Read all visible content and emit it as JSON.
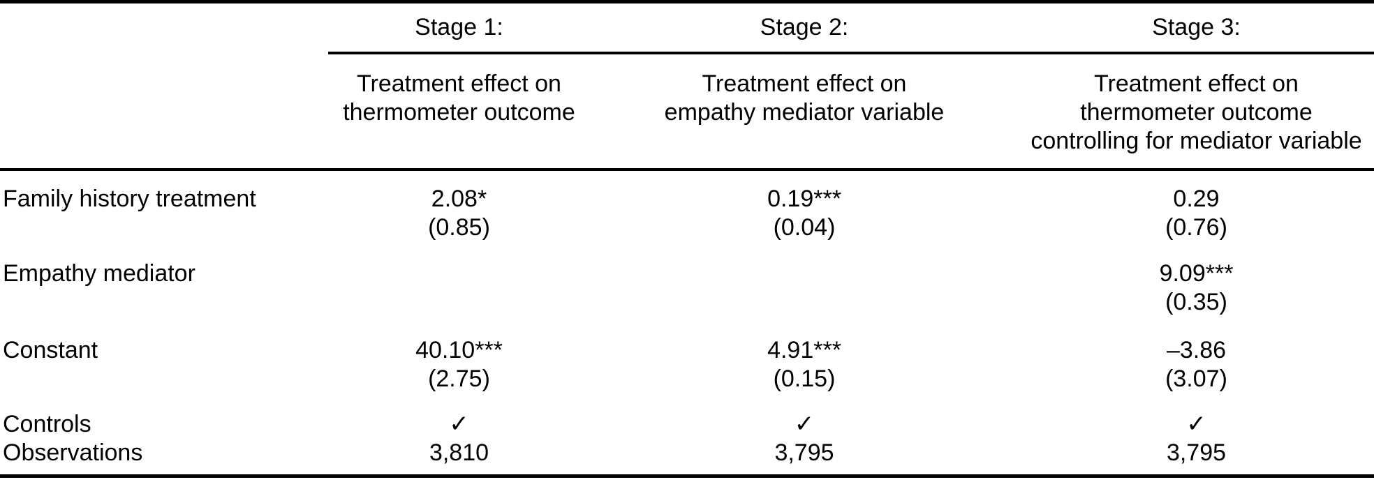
{
  "table": {
    "columns": [
      {
        "stage": "Stage 1:",
        "desc1": "Treatment effect on",
        "desc2": "thermometer outcome",
        "desc3": ""
      },
      {
        "stage": "Stage 2:",
        "desc1": "Treatment effect on",
        "desc2": "empathy mediator variable",
        "desc3": ""
      },
      {
        "stage": "Stage 3:",
        "desc1": "Treatment effect on",
        "desc2": "thermometer outcome",
        "desc3": "controlling for mediator variable"
      }
    ],
    "coefficient_rows": [
      {
        "label": "Family history treatment",
        "cells": [
          {
            "estimate": "2.08*",
            "se": "(0.85)"
          },
          {
            "estimate": "0.19***",
            "se": "(0.04)"
          },
          {
            "estimate": "0.29",
            "se": "(0.76)"
          }
        ]
      },
      {
        "label": "Empathy mediator",
        "cells": [
          {
            "estimate": "",
            "se": ""
          },
          {
            "estimate": "",
            "se": ""
          },
          {
            "estimate": "9.09***",
            "se": "(0.35)"
          }
        ]
      },
      {
        "label": "Constant",
        "cells": [
          {
            "estimate": "40.10***",
            "se": "(2.75)"
          },
          {
            "estimate": "4.91***",
            "se": "(0.15)"
          },
          {
            "estimate": "–3.86",
            "se": "(3.07)"
          }
        ]
      }
    ],
    "summary_rows": [
      {
        "label": "Controls",
        "values": [
          "✓",
          "✓",
          "✓"
        ]
      },
      {
        "label": "Observations",
        "values": [
          "3,810",
          "3,795",
          "3,795"
        ]
      }
    ]
  }
}
